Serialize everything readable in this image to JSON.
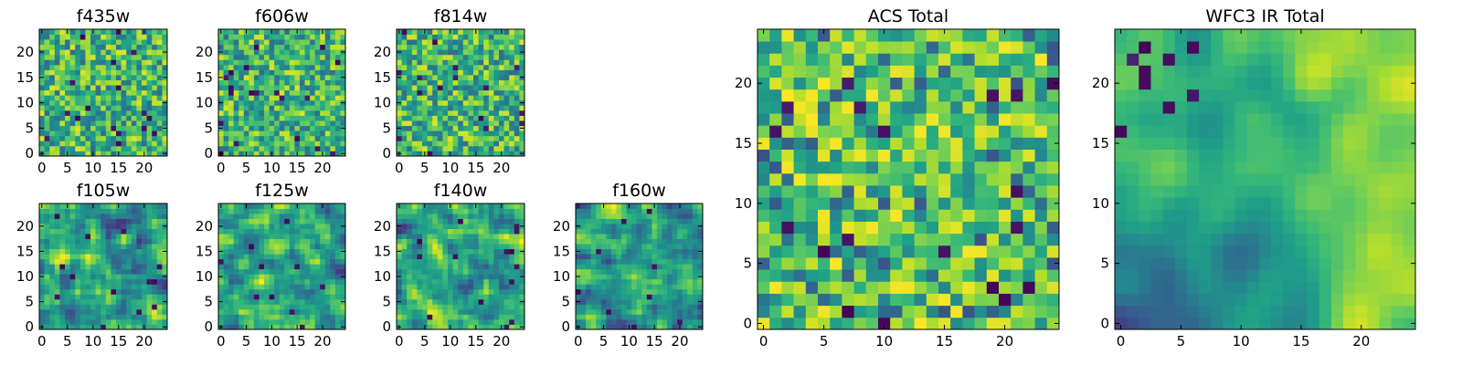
{
  "chart_data": [
    {
      "id": "f435w",
      "type": "heatmap",
      "title": "f435w",
      "xticks": [
        "0",
        "5",
        "10",
        "15",
        "20"
      ],
      "yticks": [
        "0",
        "5",
        "10",
        "15",
        "20"
      ],
      "grid_size": 25,
      "xlim": [
        -0.5,
        24.5
      ],
      "ylim": [
        -0.5,
        24.5
      ],
      "colormap": "viridis",
      "pattern": "noise"
    },
    {
      "id": "f606w",
      "type": "heatmap",
      "title": "f606w",
      "xticks": [
        "0",
        "5",
        "10",
        "15",
        "20"
      ],
      "yticks": [
        "0",
        "5",
        "10",
        "15",
        "20"
      ],
      "grid_size": 25,
      "xlim": [
        -0.5,
        24.5
      ],
      "ylim": [
        -0.5,
        24.5
      ],
      "colormap": "viridis",
      "pattern": "noise"
    },
    {
      "id": "f814w",
      "type": "heatmap",
      "title": "f814w",
      "xticks": [
        "0",
        "5",
        "10",
        "15",
        "20"
      ],
      "yticks": [
        "0",
        "5",
        "10",
        "15",
        "20"
      ],
      "grid_size": 25,
      "xlim": [
        -0.5,
        24.5
      ],
      "ylim": [
        -0.5,
        24.5
      ],
      "colormap": "viridis",
      "pattern": "noise"
    },
    {
      "id": "f105w",
      "type": "heatmap",
      "title": "f105w",
      "xticks": [
        "0",
        "5",
        "10",
        "15",
        "20"
      ],
      "yticks": [
        "0",
        "5",
        "10",
        "15",
        "20"
      ],
      "grid_size": 25,
      "xlim": [
        -0.5,
        24.5
      ],
      "ylim": [
        -0.5,
        24.5
      ],
      "colormap": "viridis",
      "pattern": "smooth"
    },
    {
      "id": "f125w",
      "type": "heatmap",
      "title": "f125w",
      "xticks": [
        "0",
        "5",
        "10",
        "15",
        "20"
      ],
      "yticks": [
        "0",
        "5",
        "10",
        "15",
        "20"
      ],
      "grid_size": 25,
      "xlim": [
        -0.5,
        24.5
      ],
      "ylim": [
        -0.5,
        24.5
      ],
      "colormap": "viridis",
      "pattern": "smooth"
    },
    {
      "id": "f140w",
      "type": "heatmap",
      "title": "f140w",
      "xticks": [
        "0",
        "5",
        "10",
        "15",
        "20"
      ],
      "yticks": [
        "0",
        "5",
        "10",
        "15",
        "20"
      ],
      "grid_size": 25,
      "xlim": [
        -0.5,
        24.5
      ],
      "ylim": [
        -0.5,
        24.5
      ],
      "colormap": "viridis",
      "pattern": "smooth"
    },
    {
      "id": "f160w",
      "type": "heatmap",
      "title": "f160w",
      "xticks": [
        "0",
        "5",
        "10",
        "15",
        "20"
      ],
      "yticks": [
        "0",
        "5",
        "10",
        "15",
        "20"
      ],
      "grid_size": 25,
      "xlim": [
        -0.5,
        24.5
      ],
      "ylim": [
        -0.5,
        24.5
      ],
      "colormap": "viridis",
      "pattern": "smooth"
    },
    {
      "id": "acs-total",
      "type": "heatmap",
      "title": "ACS Total",
      "xticks": [
        "0",
        "5",
        "10",
        "15",
        "20"
      ],
      "yticks": [
        "0",
        "5",
        "10",
        "15",
        "20"
      ],
      "grid_size": 25,
      "xlim": [
        -0.5,
        24.5
      ],
      "ylim": [
        -0.5,
        24.5
      ],
      "colormap": "viridis",
      "pattern": "noise-bright"
    },
    {
      "id": "wfc3-ir-total",
      "type": "heatmap",
      "title": "WFC3 IR Total",
      "xticks": [
        "0",
        "5",
        "10",
        "15",
        "20"
      ],
      "yticks": [
        "0",
        "5",
        "10",
        "15",
        "20"
      ],
      "grid_size": 25,
      "xlim": [
        -0.5,
        24.5
      ],
      "ylim": [
        -0.5,
        24.5
      ],
      "colormap": "viridis",
      "pattern": "gradient"
    }
  ]
}
